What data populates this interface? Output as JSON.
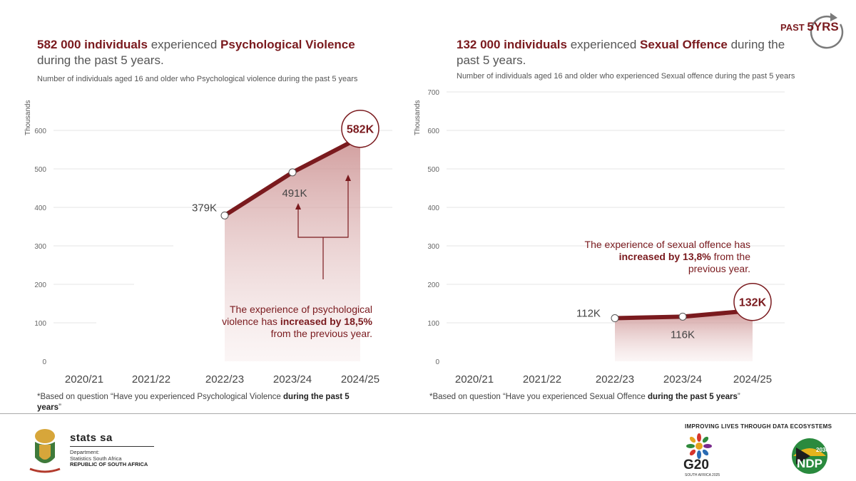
{
  "corner_badge": {
    "prefix": "PAST",
    "big": "5YRS"
  },
  "left": {
    "title_bold1": "582 000 individuals",
    "title_mid": " experienced ",
    "title_bold2": "Psychological Violence",
    "title_end": " during the past 5 years.",
    "subtitle": "Number of individuals aged 16 and older who Psychological violence during the past 5 years",
    "annotation_pre": "The experience of psychological violence has ",
    "annotation_bold": "increased by 18,5%",
    "annotation_post": " from the previous year.",
    "footnote_pre": "*Based on question “Have you experienced Psychological Violence ",
    "footnote_bold": "during the past 5 years",
    "footnote_post": "”"
  },
  "right": {
    "title_bold1": "132 000 individuals",
    "title_mid": " experienced ",
    "title_bold2": "Sexual Offence",
    "title_end": " during the past 5 years.",
    "subtitle": "Number of individuals aged 16 and older who experienced  Sexual offence  during the past 5 years",
    "annotation_pre": "The experience of sexual offence has ",
    "annotation_bold": "increased by 13,8%",
    "annotation_post": " from the previous year.",
    "footnote_pre": "*Based on question “Have you experienced Sexual Offence ",
    "footnote_bold": "during the past 5 years",
    "footnote_post": "”"
  },
  "footer": {
    "stats_name": "stats sa",
    "dept_line1": "Department:",
    "dept_line2": "Statistics South Africa",
    "country": "REPUBLIC OF SOUTH AFRICA",
    "tagline": "IMPROVING LIVES THROUGH DATA ECOSYSTEMS",
    "g20": "G20",
    "g20_sub": "SOUTH AFRICA 2025",
    "ndp_year": "2030",
    "ndp": "NDP"
  },
  "colors": {
    "accent": "#7a1a1e",
    "grid": "#e6e6e6"
  },
  "chart_data": [
    {
      "type": "area",
      "categories": [
        "2020/21",
        "2021/22",
        "2022/23",
        "2023/24",
        "2024/25"
      ],
      "series": [
        {
          "values": [
            null,
            null,
            379,
            491,
            582
          ]
        }
      ],
      "data_labels": [
        "",
        "",
        "379K",
        "491K",
        "582K"
      ],
      "ylabel": "Thousands",
      "yticks": [
        "0",
        "100",
        "200",
        "300",
        "400",
        "500",
        "600"
      ],
      "ylim": [
        0,
        700
      ]
    },
    {
      "type": "area",
      "categories": [
        "2020/21",
        "2021/22",
        "2022/23",
        "2023/24",
        "2024/25"
      ],
      "series": [
        {
          "values": [
            null,
            null,
            112,
            116,
            132
          ]
        }
      ],
      "data_labels": [
        "",
        "",
        "112K",
        "116K",
        "132K"
      ],
      "ylabel": "Thousands",
      "yticks": [
        "0",
        "100",
        "200",
        "300",
        "400",
        "500",
        "600",
        "700"
      ],
      "ylim": [
        0,
        700
      ]
    }
  ]
}
